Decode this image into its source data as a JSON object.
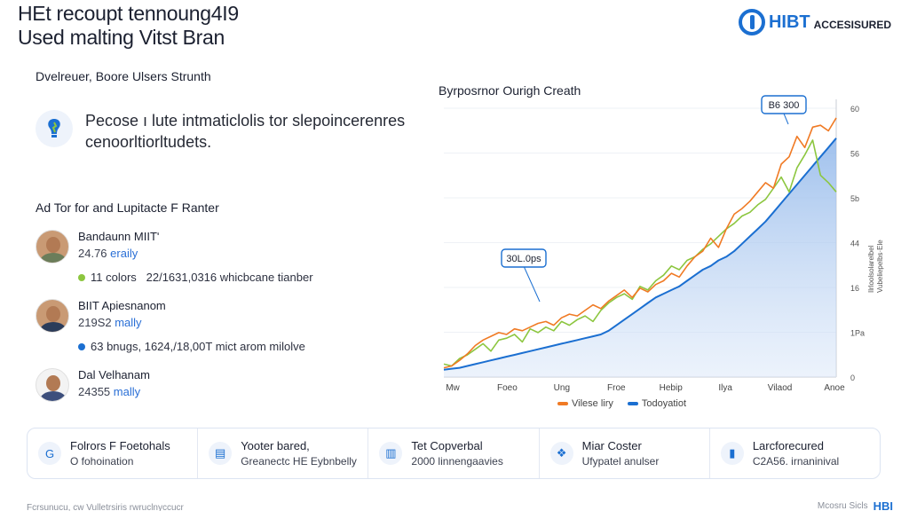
{
  "header": {
    "title_line1": "HEt recoupt tennoung4I9",
    "title_line2": "Used malting Vitst Bran",
    "brand_main": "HIBT",
    "brand_sub": "ACCESISURED"
  },
  "left": {
    "section1_title": "Dvelreuer, Boore Ulsers Strunth",
    "card_line1": "Pecose ı lute intmaticlolis tor slepoincerenres",
    "card_line2": "cenoorltiorltudets.",
    "section2_title": "Ad Tor for and Lupitacte F Ranter",
    "people": [
      {
        "name": "Bandaunn MIITʹ",
        "rate_num": "24.76",
        "rate_unit": "eraily",
        "stat": "11 colors    22/1631,0316 whicbcane tianber",
        "stat_color": "#8cc63f"
      },
      {
        "name": "BIIT Apiesnanom",
        "rate_num": "219S2",
        "rate_unit": "mally",
        "stat": "63 bnugs,  1624,/18,00T mict arom milolve",
        "stat_color": "#1b6fd1"
      },
      {
        "name": "Dal Velhanam",
        "rate_num": "24355",
        "rate_unit": "mally",
        "stat": "",
        "stat_color": ""
      }
    ]
  },
  "chart_data": {
    "type": "line",
    "title": "Byrposrnor Ourigh Creath",
    "x_tick_labels": [
      "Mw",
      "Foeo",
      "Ung",
      "Froe",
      "Hebip",
      "Ilya",
      "Vilaod",
      "Anoe"
    ],
    "y_tick_labels": [
      "0",
      "1Pa",
      "16",
      "44",
      "5b",
      "56",
      "60"
    ],
    "right_axis_labels": [
      "Ilrloolsolarelbel",
      "Vubeliepelbs·Ele"
    ],
    "callouts": [
      "30L.0ps",
      "B6 300"
    ],
    "series": [
      {
        "name": "Vilese liry",
        "color": "#f07a24",
        "values": [
          10,
          12,
          18,
          25,
          34,
          40,
          44,
          48,
          46,
          52,
          50,
          54,
          58,
          60,
          56,
          64,
          68,
          66,
          72,
          78,
          74,
          82,
          88,
          94,
          86,
          96,
          92,
          100,
          104,
          112,
          108,
          120,
          130,
          136,
          150,
          140,
          160,
          176,
          182,
          190,
          200,
          210,
          204,
          230,
          238,
          260,
          248,
          270,
          272,
          266,
          280
        ]
      },
      {
        "name": "",
        "color": "#8cc63f",
        "values": [
          14,
          12,
          20,
          24,
          30,
          36,
          28,
          40,
          42,
          46,
          38,
          52,
          48,
          54,
          50,
          60,
          56,
          62,
          66,
          60,
          72,
          80,
          86,
          90,
          84,
          98,
          94,
          104,
          110,
          120,
          116,
          126,
          130,
          138,
          144,
          152,
          160,
          166,
          174,
          178,
          186,
          192,
          204,
          216,
          200,
          226,
          240,
          256,
          218,
          210,
          200
        ]
      },
      {
        "name": "Todoyatiot",
        "color": "#1b6fd1",
        "area": true,
        "values": [
          8,
          9,
          10,
          12,
          14,
          16,
          18,
          20,
          22,
          24,
          26,
          28,
          30,
          32,
          34,
          36,
          38,
          40,
          42,
          44,
          46,
          50,
          56,
          62,
          68,
          74,
          80,
          86,
          90,
          94,
          98,
          104,
          110,
          116,
          120,
          126,
          130,
          136,
          144,
          152,
          160,
          168,
          178,
          188,
          198,
          208,
          218,
          228,
          238,
          248,
          258
        ]
      }
    ],
    "ylim": [
      0,
      300
    ]
  },
  "bottom": {
    "cells": [
      {
        "title": "Folrors F Foetohals",
        "sub": "O fohoination",
        "icon": "G"
      },
      {
        "title": "Yooter bared,",
        "sub": "Greanectc HE Eybnbelly",
        "icon": "▤"
      },
      {
        "title": "Tet Copverbal",
        "sub": "2000 linnengaavies",
        "icon": "▥"
      },
      {
        "title": "Miar Coster",
        "sub": "Ufypatel anulser",
        "icon": "❖"
      },
      {
        "title": "Larcforecured",
        "sub": "C2A56. irnaninival",
        "icon": "▮"
      }
    ]
  },
  "footer": {
    "left": "Fcrsunucu, cw Vulletrsiris rwruclnyccucr",
    "right": "Mcosru Sicls",
    "right_brand": "HBI"
  }
}
